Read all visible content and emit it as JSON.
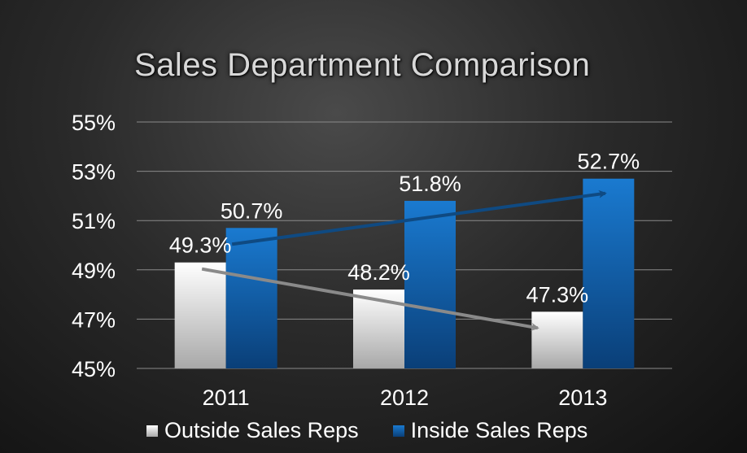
{
  "chart_data": {
    "type": "bar",
    "title": "Sales Department Comparison",
    "categories": [
      "2011",
      "2012",
      "2013"
    ],
    "series": [
      {
        "name": "Outside Sales Reps",
        "values": [
          49.3,
          48.2,
          47.3
        ],
        "labels": [
          "49.3%",
          "48.2%",
          "47.3%"
        ],
        "color": "#e0e0e0"
      },
      {
        "name": "Inside Sales Reps",
        "values": [
          50.7,
          51.8,
          52.7
        ],
        "labels": [
          "50.7%",
          "51.8%",
          "52.7%"
        ],
        "color": "#1565b0"
      }
    ],
    "ylim": [
      45,
      55
    ],
    "yticks": [
      "45%",
      "47%",
      "49%",
      "51%",
      "53%",
      "55%"
    ],
    "ytick_values": [
      45,
      47,
      49,
      51,
      53,
      55
    ],
    "grid": true,
    "legend_position": "bottom",
    "trend_arrows": [
      {
        "series": "Inside Sales Reps",
        "color": "#0f4a82"
      },
      {
        "series": "Outside Sales Reps",
        "color": "#8a8a8a"
      }
    ]
  }
}
